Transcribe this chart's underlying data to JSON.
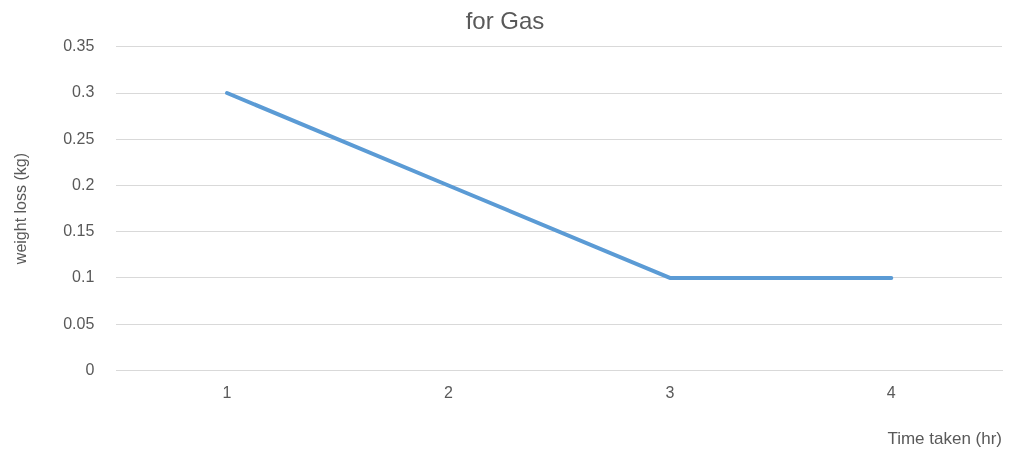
{
  "chart_data": {
    "type": "line",
    "title": "for Gas",
    "xlabel": "Time taken (hr)",
    "ylabel": "weight loss (kg)",
    "categories": [
      "1",
      "2",
      "3",
      "4"
    ],
    "series": [
      {
        "color": "#5b9bd5",
        "values": [
          0.3,
          0.2,
          0.1,
          0.1
        ]
      }
    ],
    "ylim": [
      0,
      0.35
    ],
    "yticks": [
      0,
      0.05,
      0.1,
      0.15,
      0.2,
      0.25,
      0.3,
      0.35
    ],
    "grid": "y",
    "legend": false,
    "marker": "none",
    "line_style": "solid"
  }
}
